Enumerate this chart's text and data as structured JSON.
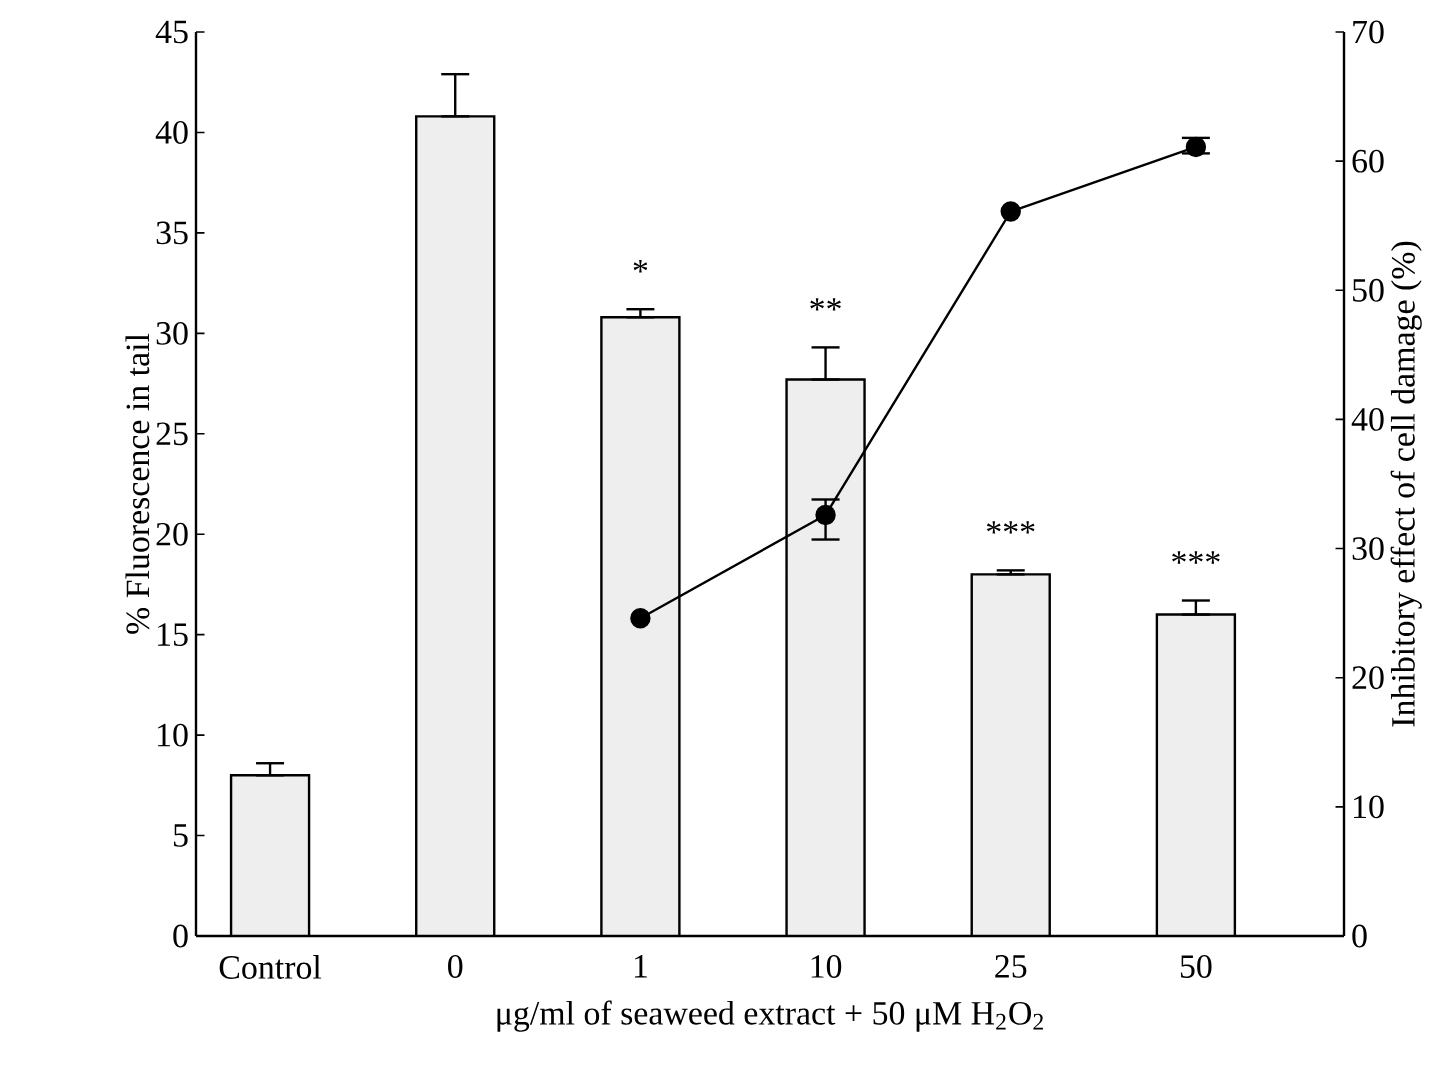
{
  "chart_data": {
    "type": "bar",
    "categories": [
      "Control",
      "0",
      "1",
      "10",
      "25",
      "50"
    ],
    "xlabel": "μg/ml of seaweed extract + 50 μM H$_{2}$O$_{2}$",
    "ylabel": "% Fluorescence in tail",
    "y2label": "Inhibitory effect of cell damage (%)",
    "ylim": [
      0,
      45
    ],
    "yticks": [
      0,
      5,
      10,
      15,
      20,
      25,
      30,
      35,
      40,
      45
    ],
    "y2lim": [
      0,
      70
    ],
    "y2ticks": [
      0,
      10,
      20,
      30,
      40,
      50,
      60,
      70
    ],
    "series": [
      {
        "color": "#eeeeee",
        "values": [
          8.0,
          40.8,
          30.8,
          27.7,
          18.0,
          16.0
        ],
        "errors": [
          [
            8.0,
            8.6
          ],
          [
            40.8,
            42.9
          ],
          [
            30.8,
            31.2
          ],
          [
            27.7,
            29.3
          ],
          [
            18.0,
            18.2
          ],
          [
            16.0,
            16.7
          ]
        ]
      },
      {
        "type": "line",
        "axis": "y2",
        "x": [
          "1",
          "10",
          "25",
          "50"
        ],
        "values": [
          24.6,
          32.6,
          56.1,
          61.1
        ],
        "errors": [
          null,
          [
            30.7,
            33.8
          ],
          null,
          [
            60.6,
            61.8
          ]
        ],
        "color": "#000000",
        "marker": "circle",
        "line_style": "solid"
      }
    ],
    "annotations": [
      {
        "text": "*",
        "x": "1",
        "y": 31.2
      },
      {
        "text": "**",
        "x": "10",
        "y": 29.3
      },
      {
        "text": "***",
        "x": "25",
        "y": 18.2
      },
      {
        "text": "***",
        "x": "50",
        "y": 16.7
      }
    ]
  }
}
